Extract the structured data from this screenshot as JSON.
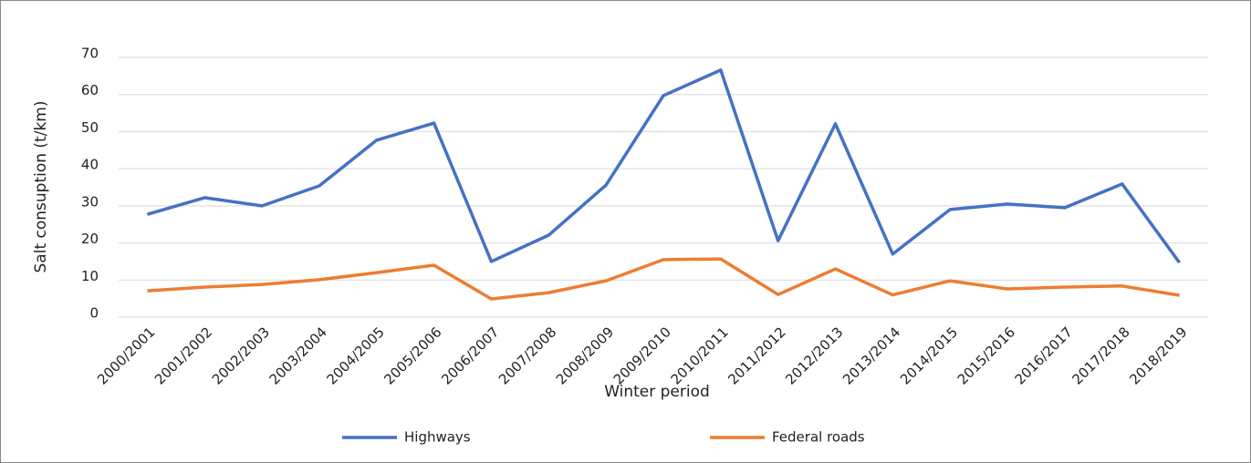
{
  "chart_data": {
    "type": "line",
    "x_label": "Winter period",
    "y_label": "Salt consuption (t/km)",
    "categories": [
      "2000/2001",
      "2001/2002",
      "2002/2003",
      "2003/2004",
      "2004/2005",
      "2005/2006",
      "2006/2007",
      "2007/2008",
      "2008/2009",
      "2009/2010",
      "2010/2011",
      "2011/2012",
      "2012/2013",
      "2013/2014",
      "2014/2015",
      "2015/2016",
      "2016/2017",
      "2017/2018",
      "2018/2019"
    ],
    "series": [
      {
        "name": "Highways",
        "color": "#4472c4",
        "values": [
          27.7,
          32.2,
          30,
          35.4,
          47.7,
          52.3,
          15,
          22.1,
          35.6,
          59.7,
          66.6,
          20.6,
          52.1,
          17,
          29,
          30.5,
          29.5,
          35.9,
          14.7
        ]
      },
      {
        "name": "Federal roads",
        "color": "#ed7d31",
        "values": [
          7.1,
          8.1,
          8.8,
          10.1,
          12,
          14,
          4.9,
          6.6,
          9.8,
          15.5,
          15.7,
          6.1,
          13,
          6,
          9.8,
          7.6,
          8.1,
          8.4,
          5.9
        ]
      }
    ],
    "ylim": [
      0,
      70
    ],
    "yticks": [
      0,
      10,
      20,
      30,
      40,
      50,
      60,
      70
    ],
    "grid": true,
    "legend": "bottom"
  }
}
